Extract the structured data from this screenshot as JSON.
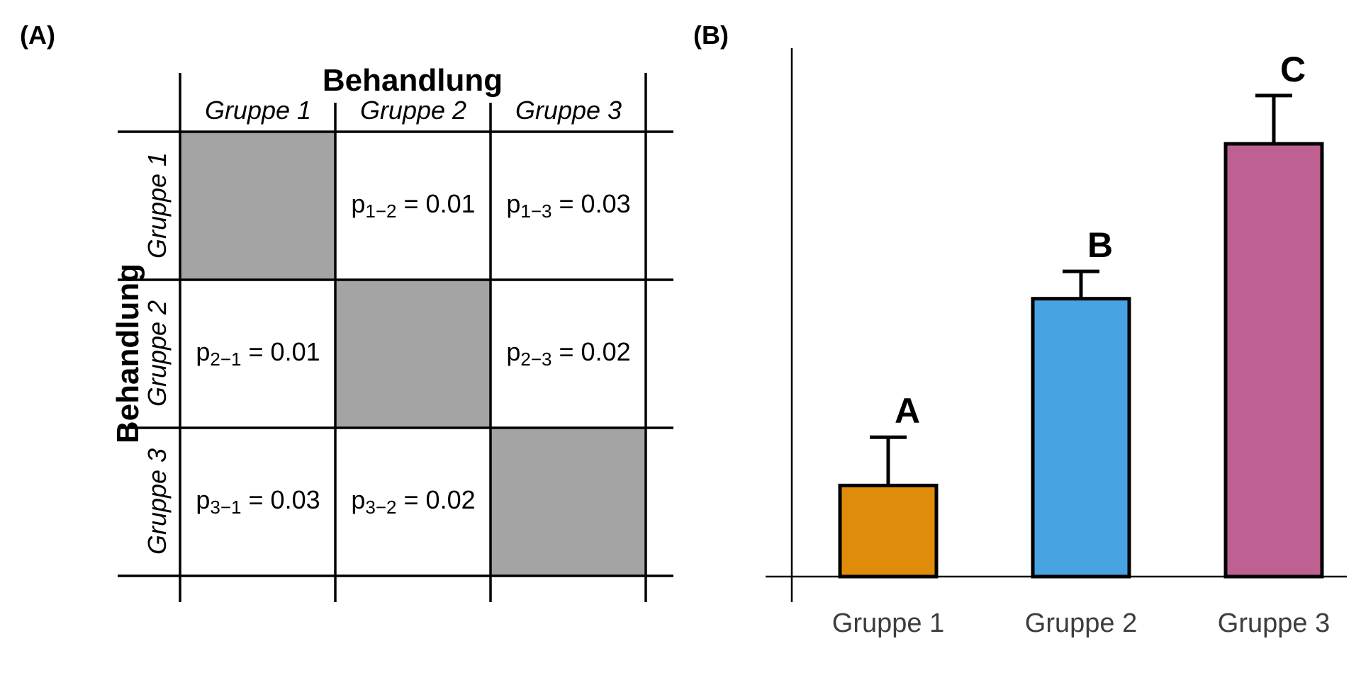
{
  "panels": {
    "a_label": "(A)",
    "b_label": "(B)"
  },
  "matrix": {
    "col_title": "Behandlung",
    "row_title": "Behandlung",
    "col_groups": [
      "Gruppe 1",
      "Gruppe 2",
      "Gruppe 3"
    ],
    "row_groups": [
      "Gruppe 1",
      "Gruppe 2",
      "Gruppe 3"
    ],
    "diagonal_color": "#a4a4a4",
    "cells": {
      "r1c2": {
        "sym": "p",
        "sub": "1−2",
        "val": " = 0.01"
      },
      "r1c3": {
        "sym": "p",
        "sub": "1−3",
        "val": " = 0.03"
      },
      "r2c1": {
        "sym": "p",
        "sub": "2−1",
        "val": " = 0.01"
      },
      "r2c3": {
        "sym": "p",
        "sub": "2−3",
        "val": " = 0.02"
      },
      "r3c1": {
        "sym": "p",
        "sub": "3−1",
        "val": " = 0.03"
      },
      "r3c2": {
        "sym": "p",
        "sub": "3−2",
        "val": " = 0.02"
      }
    }
  },
  "chart_data": {
    "type": "bar",
    "categories": [
      "Gruppe 1",
      "Gruppe 2",
      "Gruppe 3"
    ],
    "values": [
      1.0,
      3.05,
      4.75
    ],
    "errors": [
      0.53,
      0.3,
      0.53
    ],
    "letters": [
      "A",
      "B",
      "C"
    ],
    "colors": [
      "#df8c0b",
      "#48a3e2",
      "#bf6092"
    ],
    "ylim": [
      0,
      5.8
    ],
    "title": "",
    "xlabel": "",
    "ylabel": "",
    "grid": false
  }
}
